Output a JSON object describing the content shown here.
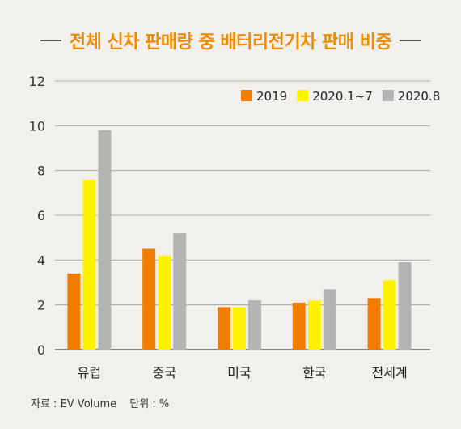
{
  "title": "전체 신차 판매량 중 배터리전기차 판매 비중",
  "source_note": {
    "source": "자료 : EV Volume",
    "unit": "단위 : %"
  },
  "chart_data": {
    "type": "bar",
    "categories": [
      "유럽",
      "중국",
      "미국",
      "한국",
      "전세계"
    ],
    "series": [
      {
        "name": "2019",
        "color": "#f07d00",
        "values": [
          3.4,
          4.5,
          1.9,
          2.1,
          2.3
        ]
      },
      {
        "name": "2020.1~7",
        "color": "#fff200",
        "values": [
          7.6,
          4.2,
          1.9,
          2.2,
          3.1
        ]
      },
      {
        "name": "2020.8",
        "color": "#b3b3b3",
        "values": [
          9.8,
          5.2,
          2.2,
          2.7,
          3.9
        ]
      }
    ],
    "ylim": [
      0,
      12
    ],
    "yticks": [
      0,
      2,
      4,
      6,
      8,
      10,
      12
    ],
    "grid": true,
    "legend": "top-right"
  }
}
